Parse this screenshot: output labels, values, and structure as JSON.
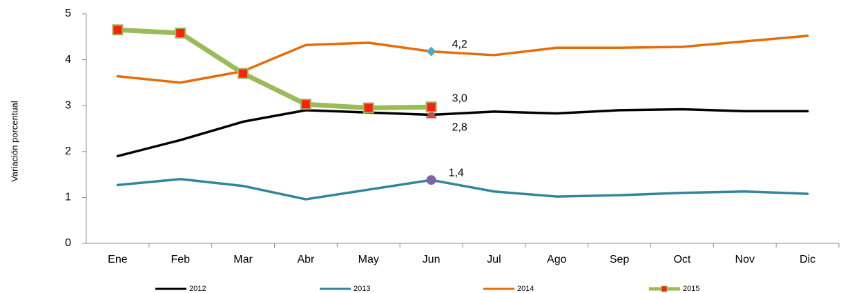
{
  "chart_data": {
    "type": "line",
    "y_label": "Variación porcentual",
    "categories": [
      "Ene",
      "Feb",
      "Mar",
      "Abr",
      "May",
      "Jun",
      "Jul",
      "Ago",
      "Sep",
      "Oct",
      "Nov",
      "Dic"
    ],
    "ylim": [
      0,
      5
    ],
    "yticks": [
      0,
      1,
      2,
      3,
      4,
      5
    ],
    "grid": false,
    "legend": "bottom",
    "series": [
      {
        "name": "2012",
        "color": "#000000",
        "values": [
          1.9,
          2.25,
          2.65,
          2.9,
          2.85,
          2.8,
          2.87,
          2.83,
          2.9,
          2.92,
          2.88,
          2.88
        ],
        "value_labels": [
          null,
          null,
          null,
          null,
          null,
          "2,8",
          null,
          null,
          null,
          null,
          null,
          null
        ]
      },
      {
        "name": "2013",
        "color": "#31859c",
        "values": [
          1.27,
          1.4,
          1.25,
          0.96,
          1.17,
          1.38,
          1.13,
          1.02,
          1.05,
          1.1,
          1.13,
          1.08
        ],
        "value_labels": [
          null,
          null,
          null,
          null,
          null,
          "1,4",
          null,
          null,
          null,
          null,
          null,
          null
        ]
      },
      {
        "name": "2014",
        "color": "#e46c0a",
        "values": [
          3.64,
          3.5,
          3.75,
          4.32,
          4.37,
          4.18,
          4.1,
          4.26,
          4.26,
          4.28,
          4.4,
          4.52
        ],
        "value_labels": [
          null,
          null,
          null,
          null,
          null,
          "4,2",
          null,
          null,
          null,
          null,
          null,
          null
        ]
      },
      {
        "name": "2015",
        "color": "#9bbb59",
        "values": [
          4.65,
          4.58,
          3.7,
          3.03,
          2.95,
          2.97,
          null,
          null,
          null,
          null,
          null,
          null
        ],
        "value_labels": [
          null,
          null,
          null,
          null,
          null,
          "3,0",
          null,
          null,
          null,
          null,
          null,
          null
        ]
      }
    ]
  }
}
